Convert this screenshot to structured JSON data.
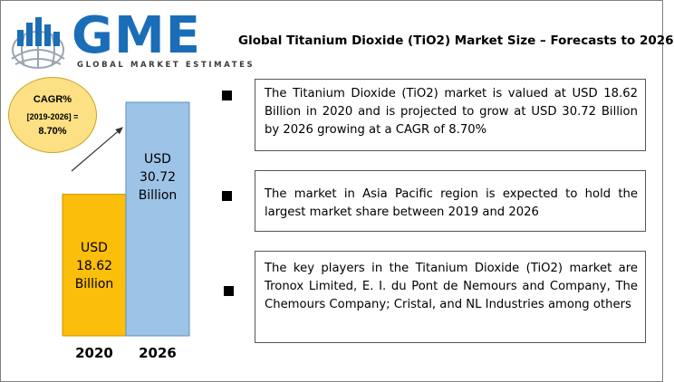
{
  "logo": {
    "letters": "GME",
    "tagline": "GLOBAL MARKET ESTIMATES",
    "colors": {
      "primary": "#1a6db7",
      "globe": "#9aa5b1"
    }
  },
  "headline": "Global Titanium Dioxide (TiO2) Market Size – Forecasts to 2026",
  "cagr": {
    "label": "CAGR%",
    "period": "[2019-2026] =",
    "value": "8.70%",
    "color": "#fce083"
  },
  "chart_data": {
    "type": "bar",
    "categories": [
      "2020",
      "2026"
    ],
    "values": [
      18.62,
      30.72
    ],
    "bar_labels": [
      [
        "USD",
        "18.62",
        "Billion"
      ],
      [
        "USD",
        "30.72",
        "Billion"
      ]
    ],
    "colors": [
      "#fbbe0a",
      "#9dc3e6"
    ],
    "title": "",
    "xlabel": "",
    "ylabel": "",
    "ylim": [
      0,
      30.72
    ],
    "grid": false,
    "legend": "none"
  },
  "insights": [
    "The Titanium Dioxide (TiO2) market is valued at USD 18.62 Billion in 2020 and is projected to grow at USD 30.72 Billion by 2026 growing at a CAGR of 8.70%",
    "The market in Asia Pacific region is expected to hold the largest market share between 2019 and 2026",
    "The key players in the Titanium Dioxide (TiO2) market are Tronox Limited, E. I. du Pont de Nemours and Company, The Chemours Company; Cristal, and NL Industries among others"
  ]
}
